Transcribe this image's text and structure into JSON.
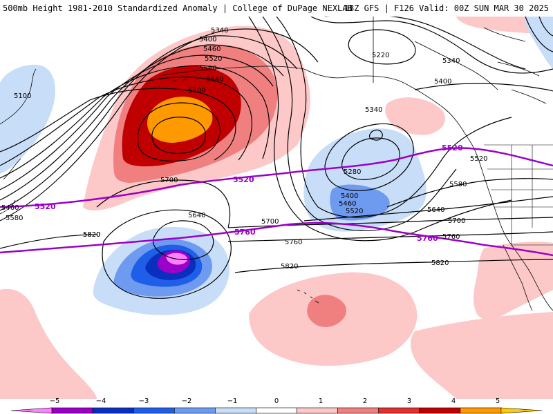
{
  "header": {
    "left_title": "500mb Height 1981-2010 Standardized Anomaly | College of DuPage NEXLAB",
    "right_title": "18Z GFS | F126 Valid: 00Z SUN MAR 30 2025"
  },
  "contours": {
    "black": [
      "5340",
      "5400",
      "5460",
      "5520",
      "5580",
      "5640",
      "5700",
      "5100",
      "5220",
      "5340",
      "5400",
      "5340",
      "5280",
      "5400",
      "5460",
      "5520",
      "5520",
      "5580",
      "5640",
      "5700",
      "5760",
      "5820",
      "5700",
      "5640",
      "5700",
      "5760",
      "5820",
      "5820",
      "5460",
      "5580",
      "5820"
    ],
    "purple": [
      "5520",
      "5520",
      "5520",
      "5760",
      "5760"
    ]
  },
  "legend": {
    "ticks": [
      "−5",
      "−4",
      "−3",
      "−2",
      "−1",
      "0",
      "1",
      "2",
      "3",
      "4",
      "5"
    ],
    "colors": [
      "#ff80ff",
      "#9b00c8",
      "#0a2fbf",
      "#1e5ee8",
      "#6e9af0",
      "#c8def8",
      "#ffffff",
      "#fcc8c8",
      "#f08080",
      "#e03030",
      "#c00000",
      "#ff9900",
      "#ffcc00"
    ]
  }
}
